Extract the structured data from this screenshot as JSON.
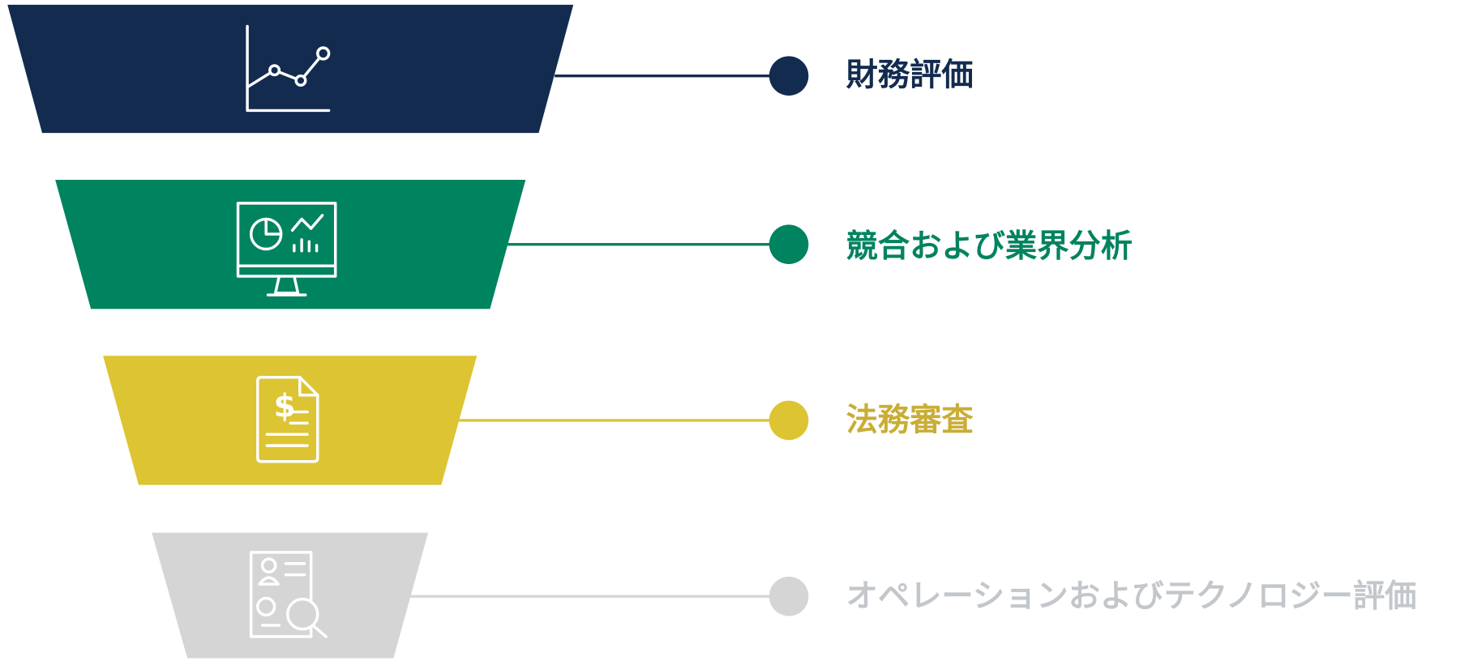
{
  "stages": [
    {
      "label": "財務評価"
    },
    {
      "label": "競合および業界分析"
    },
    {
      "label": "法務審査"
    },
    {
      "label": "オペレーションおよびテクノロジー評価"
    }
  ]
}
